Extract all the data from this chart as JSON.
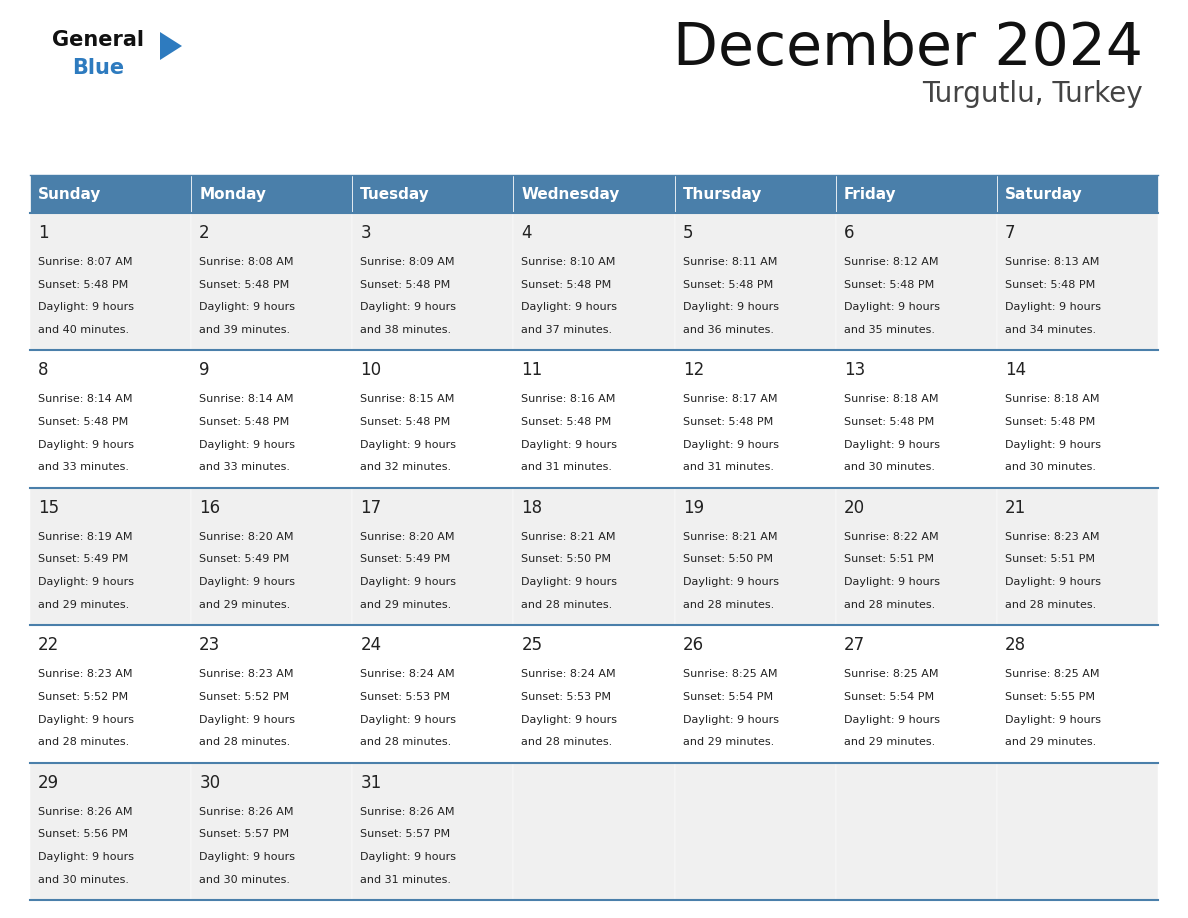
{
  "title": "December 2024",
  "subtitle": "Turgutlu, Turkey",
  "header_color": "#4a7faa",
  "header_text_color": "#ffffff",
  "days_of_week": [
    "Sunday",
    "Monday",
    "Tuesday",
    "Wednesday",
    "Thursday",
    "Friday",
    "Saturday"
  ],
  "calendar_data": [
    [
      {
        "day": 1,
        "sunrise": "8:07 AM",
        "sunset": "5:48 PM",
        "daylight_hours": 9,
        "daylight_minutes": 40
      },
      {
        "day": 2,
        "sunrise": "8:08 AM",
        "sunset": "5:48 PM",
        "daylight_hours": 9,
        "daylight_minutes": 39
      },
      {
        "day": 3,
        "sunrise": "8:09 AM",
        "sunset": "5:48 PM",
        "daylight_hours": 9,
        "daylight_minutes": 38
      },
      {
        "day": 4,
        "sunrise": "8:10 AM",
        "sunset": "5:48 PM",
        "daylight_hours": 9,
        "daylight_minutes": 37
      },
      {
        "day": 5,
        "sunrise": "8:11 AM",
        "sunset": "5:48 PM",
        "daylight_hours": 9,
        "daylight_minutes": 36
      },
      {
        "day": 6,
        "sunrise": "8:12 AM",
        "sunset": "5:48 PM",
        "daylight_hours": 9,
        "daylight_minutes": 35
      },
      {
        "day": 7,
        "sunrise": "8:13 AM",
        "sunset": "5:48 PM",
        "daylight_hours": 9,
        "daylight_minutes": 34
      }
    ],
    [
      {
        "day": 8,
        "sunrise": "8:14 AM",
        "sunset": "5:48 PM",
        "daylight_hours": 9,
        "daylight_minutes": 33
      },
      {
        "day": 9,
        "sunrise": "8:14 AM",
        "sunset": "5:48 PM",
        "daylight_hours": 9,
        "daylight_minutes": 33
      },
      {
        "day": 10,
        "sunrise": "8:15 AM",
        "sunset": "5:48 PM",
        "daylight_hours": 9,
        "daylight_minutes": 32
      },
      {
        "day": 11,
        "sunrise": "8:16 AM",
        "sunset": "5:48 PM",
        "daylight_hours": 9,
        "daylight_minutes": 31
      },
      {
        "day": 12,
        "sunrise": "8:17 AM",
        "sunset": "5:48 PM",
        "daylight_hours": 9,
        "daylight_minutes": 31
      },
      {
        "day": 13,
        "sunrise": "8:18 AM",
        "sunset": "5:48 PM",
        "daylight_hours": 9,
        "daylight_minutes": 30
      },
      {
        "day": 14,
        "sunrise": "8:18 AM",
        "sunset": "5:48 PM",
        "daylight_hours": 9,
        "daylight_minutes": 30
      }
    ],
    [
      {
        "day": 15,
        "sunrise": "8:19 AM",
        "sunset": "5:49 PM",
        "daylight_hours": 9,
        "daylight_minutes": 29
      },
      {
        "day": 16,
        "sunrise": "8:20 AM",
        "sunset": "5:49 PM",
        "daylight_hours": 9,
        "daylight_minutes": 29
      },
      {
        "day": 17,
        "sunrise": "8:20 AM",
        "sunset": "5:49 PM",
        "daylight_hours": 9,
        "daylight_minutes": 29
      },
      {
        "day": 18,
        "sunrise": "8:21 AM",
        "sunset": "5:50 PM",
        "daylight_hours": 9,
        "daylight_minutes": 28
      },
      {
        "day": 19,
        "sunrise": "8:21 AM",
        "sunset": "5:50 PM",
        "daylight_hours": 9,
        "daylight_minutes": 28
      },
      {
        "day": 20,
        "sunrise": "8:22 AM",
        "sunset": "5:51 PM",
        "daylight_hours": 9,
        "daylight_minutes": 28
      },
      {
        "day": 21,
        "sunrise": "8:23 AM",
        "sunset": "5:51 PM",
        "daylight_hours": 9,
        "daylight_minutes": 28
      }
    ],
    [
      {
        "day": 22,
        "sunrise": "8:23 AM",
        "sunset": "5:52 PM",
        "daylight_hours": 9,
        "daylight_minutes": 28
      },
      {
        "day": 23,
        "sunrise": "8:23 AM",
        "sunset": "5:52 PM",
        "daylight_hours": 9,
        "daylight_minutes": 28
      },
      {
        "day": 24,
        "sunrise": "8:24 AM",
        "sunset": "5:53 PM",
        "daylight_hours": 9,
        "daylight_minutes": 28
      },
      {
        "day": 25,
        "sunrise": "8:24 AM",
        "sunset": "5:53 PM",
        "daylight_hours": 9,
        "daylight_minutes": 28
      },
      {
        "day": 26,
        "sunrise": "8:25 AM",
        "sunset": "5:54 PM",
        "daylight_hours": 9,
        "daylight_minutes": 29
      },
      {
        "day": 27,
        "sunrise": "8:25 AM",
        "sunset": "5:54 PM",
        "daylight_hours": 9,
        "daylight_minutes": 29
      },
      {
        "day": 28,
        "sunrise": "8:25 AM",
        "sunset": "5:55 PM",
        "daylight_hours": 9,
        "daylight_minutes": 29
      }
    ],
    [
      {
        "day": 29,
        "sunrise": "8:26 AM",
        "sunset": "5:56 PM",
        "daylight_hours": 9,
        "daylight_minutes": 30
      },
      {
        "day": 30,
        "sunrise": "8:26 AM",
        "sunset": "5:57 PM",
        "daylight_hours": 9,
        "daylight_minutes": 30
      },
      {
        "day": 31,
        "sunrise": "8:26 AM",
        "sunset": "5:57 PM",
        "daylight_hours": 9,
        "daylight_minutes": 31
      },
      null,
      null,
      null,
      null
    ]
  ],
  "bg_color": "#ffffff",
  "cell_bg_odd": "#f0f0f0",
  "cell_bg_even": "#ffffff",
  "line_color": "#4a7faa",
  "day_number_color": "#222222",
  "text_color": "#222222",
  "logo_general_color": "#111111",
  "logo_blue_color": "#2e7bbf",
  "fig_width": 11.88,
  "fig_height": 9.18,
  "fig_dpi": 100
}
